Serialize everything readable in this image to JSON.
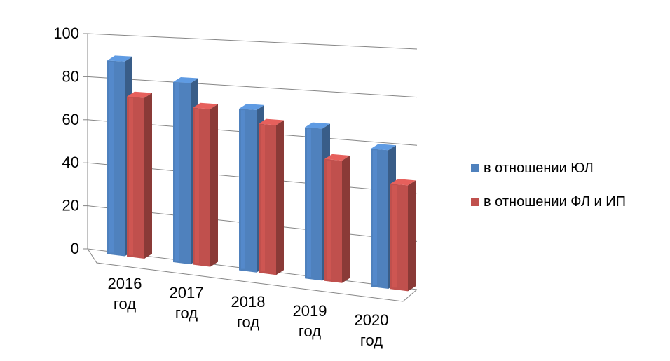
{
  "chart_data": {
    "type": "bar",
    "title": "",
    "xlabel": "",
    "ylabel": "",
    "categories": [
      "2016 год",
      "2017 год",
      "2018 год",
      "2019 год",
      "2020 год"
    ],
    "categories_lines": [
      [
        "2016",
        "год"
      ],
      [
        "2017",
        "год"
      ],
      [
        "2018",
        "год"
      ],
      [
        "2019",
        "год"
      ],
      [
        "2020",
        "год"
      ]
    ],
    "series": [
      {
        "name": "в отношении ЮЛ",
        "color": "#4f81bd",
        "values": [
          88,
          80,
          70,
          64,
          57
        ]
      },
      {
        "name": "в отношении ФЛ и ИП",
        "color": "#c0504d",
        "values": [
          72,
          69,
          64,
          51,
          43
        ]
      }
    ],
    "ylim": [
      0,
      100
    ],
    "yticks": [
      "0",
      "20",
      "40",
      "60",
      "80",
      "100"
    ],
    "grid": true,
    "style": "3d-perspective",
    "legend_position": "right"
  }
}
